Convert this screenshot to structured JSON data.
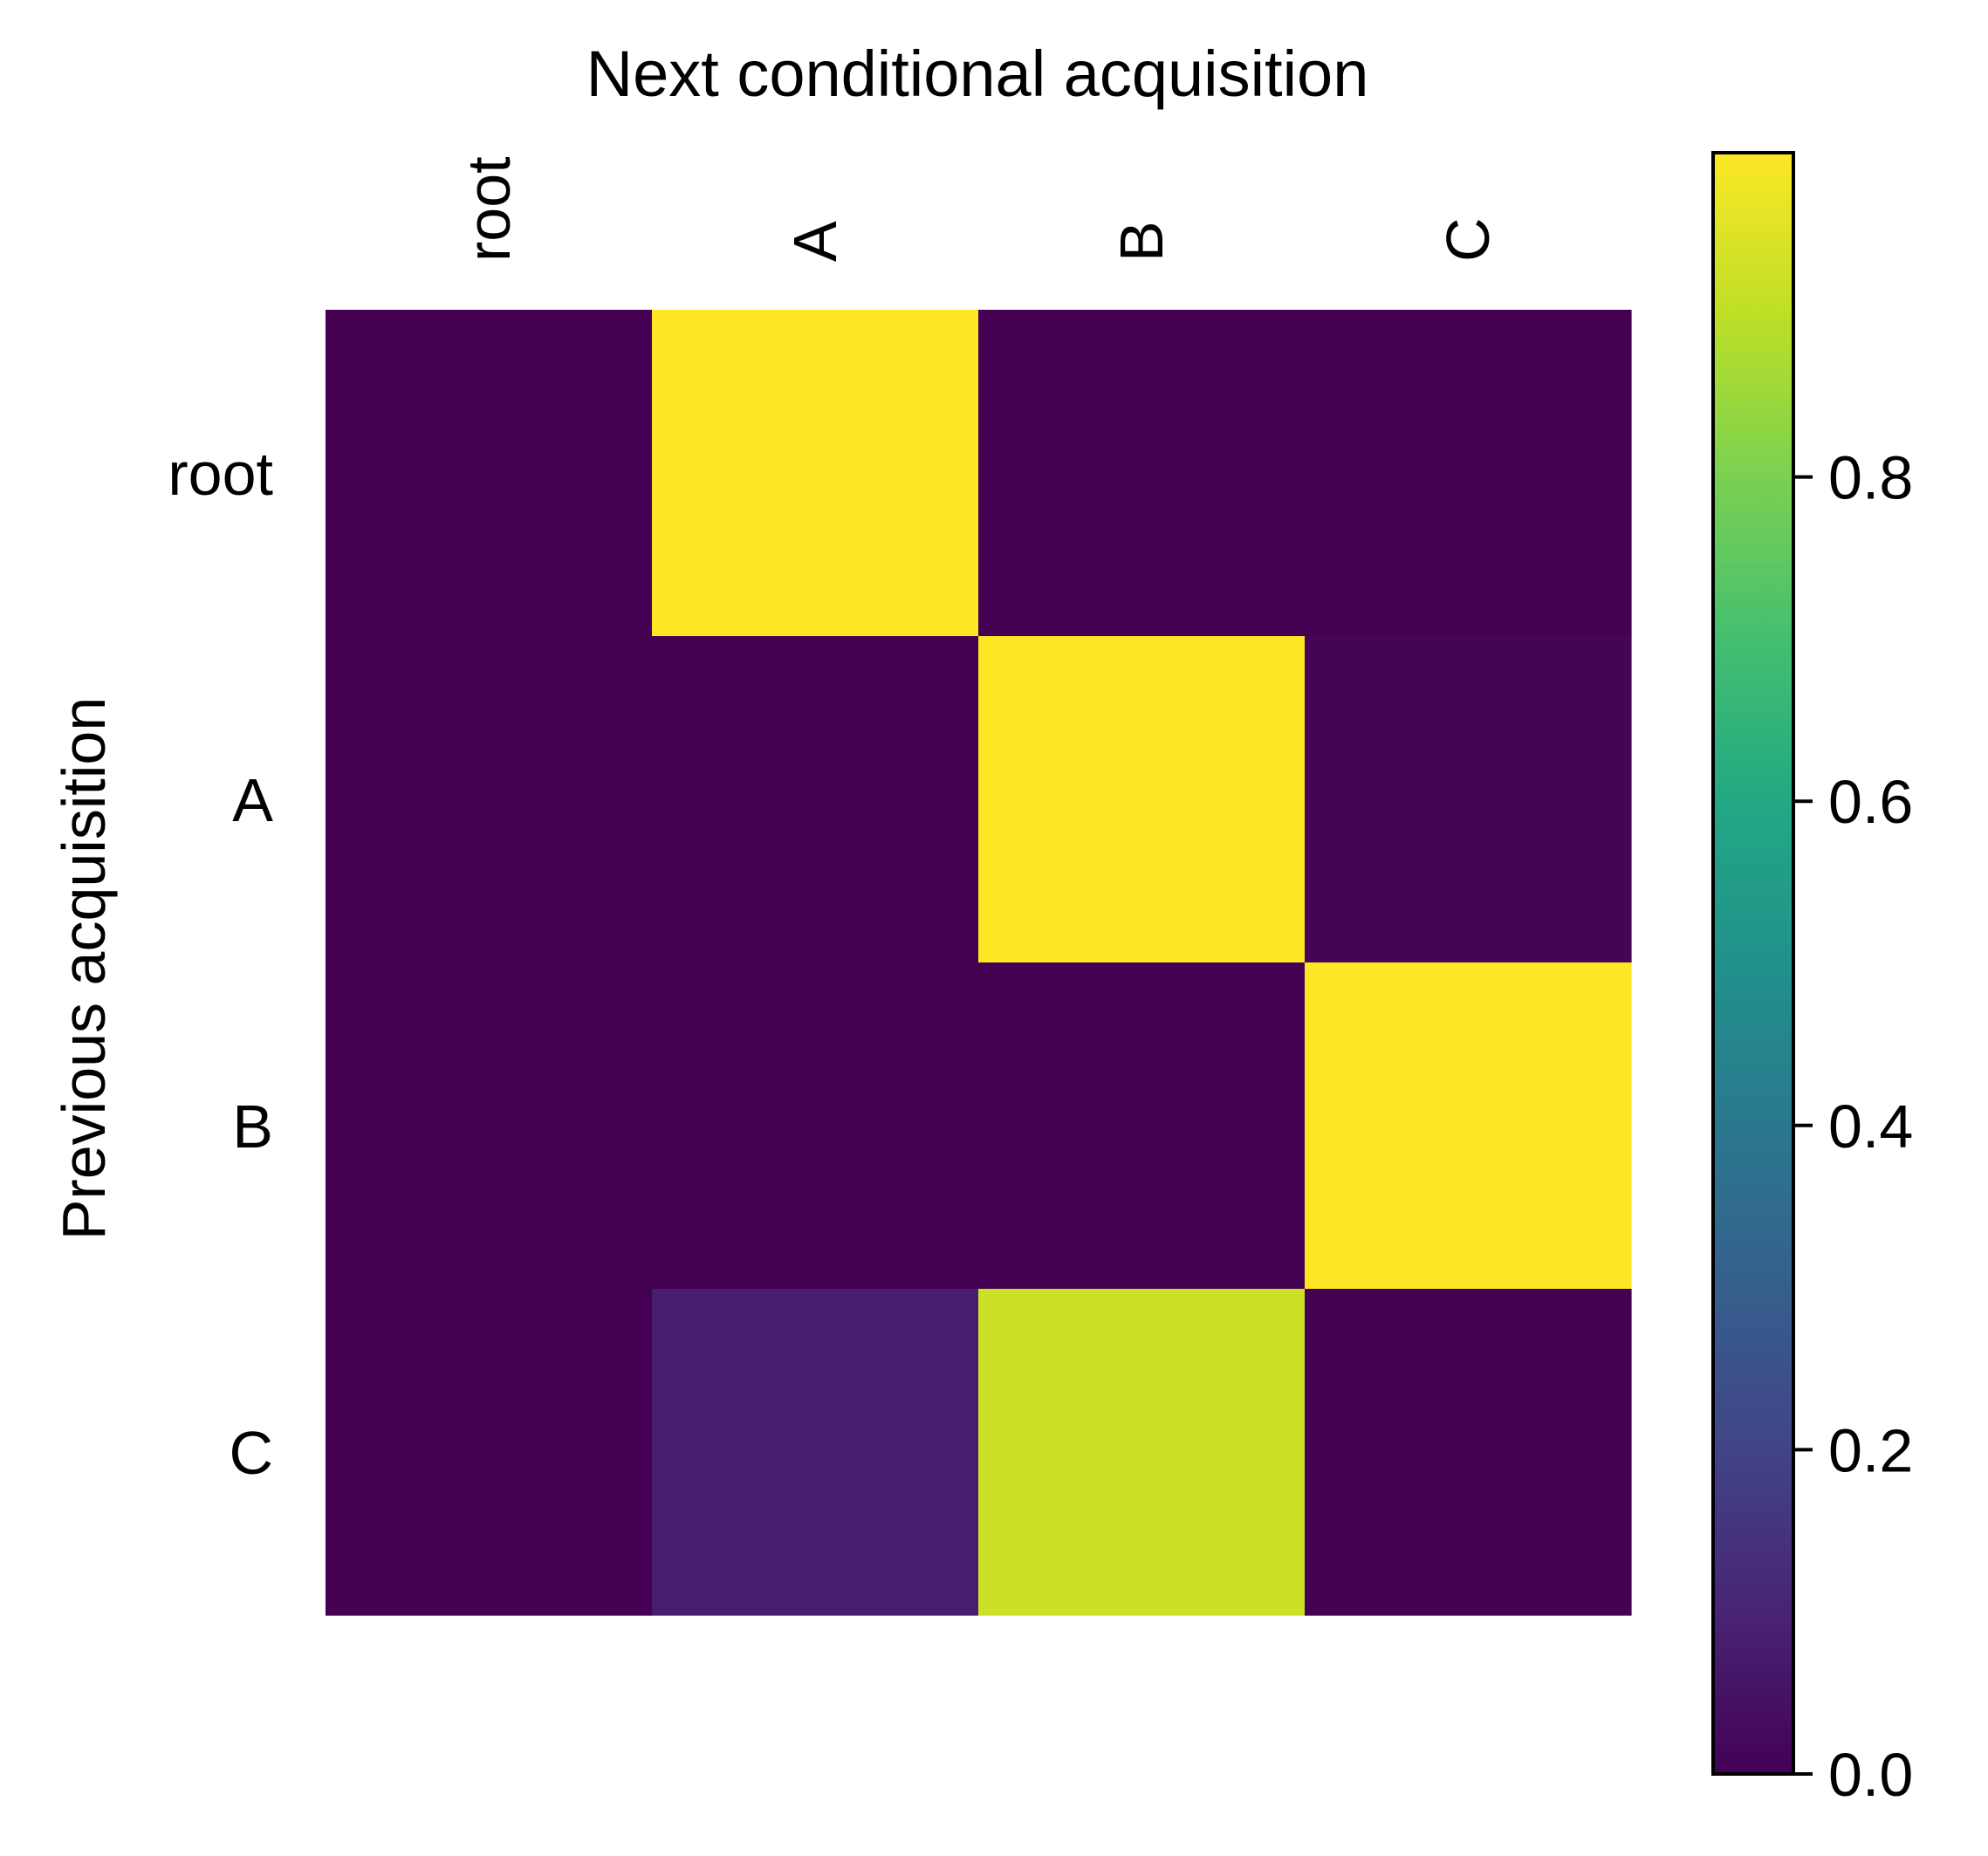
{
  "chart_data": {
    "type": "heatmap",
    "title": "Next conditional acquisition",
    "xlabel": "",
    "ylabel": "Previous acquisition",
    "x_categories": [
      "root",
      "A",
      "B",
      "C"
    ],
    "y_categories": [
      "root",
      "A",
      "B",
      "C"
    ],
    "values": [
      [
        0.0,
        1.0,
        0.0,
        0.0
      ],
      [
        0.0,
        0.0,
        1.0,
        0.01
      ],
      [
        0.0,
        0.0,
        0.0,
        1.0
      ],
      [
        0.0,
        0.08,
        0.92,
        0.0
      ]
    ],
    "colormap": "viridis",
    "vmin": 0.0,
    "vmax": 1.0,
    "colorbar": {
      "ticks": [
        0.0,
        0.2,
        0.4,
        0.6,
        0.8
      ],
      "tick_labels": [
        "0.0",
        "0.2",
        "0.4",
        "0.6",
        "0.8"
      ]
    },
    "grid": false,
    "legend": "colorbar-right"
  }
}
